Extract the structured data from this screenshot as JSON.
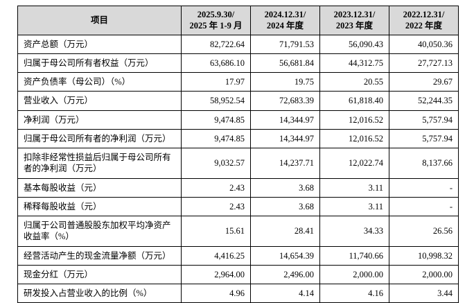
{
  "colors": {
    "header_bg": "#d9d9d9",
    "border": "#000000",
    "text": "#000000"
  },
  "table": {
    "headers": [
      {
        "line1": "项目",
        "line2": ""
      },
      {
        "line1": "2025.9.30/",
        "line2": "2025 年 1-9 月"
      },
      {
        "line1": "2024.12.31/",
        "line2": "2024 年度"
      },
      {
        "line1": "2023.12.31/",
        "line2": "2023 年度"
      },
      {
        "line1": "2022.12.31/",
        "line2": "2022 年度"
      }
    ],
    "rows": [
      {
        "label": "资产总额（万元）",
        "values": [
          "82,722.64",
          "71,791.53",
          "56,090.43",
          "40,050.36"
        ]
      },
      {
        "label": "归属于母公司所有者权益（万元）",
        "values": [
          "63,686.10",
          "56,681.84",
          "44,312.75",
          "27,727.13"
        ]
      },
      {
        "label": "资产负债率（母公司）（%）",
        "values": [
          "17.97",
          "19.75",
          "20.55",
          "29.67"
        ]
      },
      {
        "label": "营业收入（万元）",
        "values": [
          "58,952.54",
          "72,683.39",
          "61,818.40",
          "52,244.35"
        ]
      },
      {
        "label": "净利润（万元）",
        "values": [
          "9,474.85",
          "14,344.97",
          "12,016.52",
          "5,757.94"
        ]
      },
      {
        "label": "归属于母公司所有者的净利润（万元）",
        "values": [
          "9,474.85",
          "14,344.97",
          "12,016.52",
          "5,757.94"
        ]
      },
      {
        "label": "扣除非经常性损益后归属于母公司所有者的净利润（万元）",
        "values": [
          "9,032.57",
          "14,237.71",
          "12,022.74",
          "8,137.66"
        ]
      },
      {
        "label": "基本每股收益（元）",
        "values": [
          "2.43",
          "3.68",
          "3.11",
          "-"
        ]
      },
      {
        "label": "稀释每股收益（元）",
        "values": [
          "2.43",
          "3.68",
          "3.11",
          "-"
        ]
      },
      {
        "label": "归属于公司普通股股东加权平均净资产收益率（%）",
        "values": [
          "15.61",
          "28.41",
          "34.33",
          "26.56"
        ]
      },
      {
        "label": "经营活动产生的现金流量净额（万元）",
        "values": [
          "4,416.25",
          "14,654.39",
          "11,740.66",
          "10,998.32"
        ]
      },
      {
        "label": "现金分红（万元）",
        "values": [
          "2,964.00",
          "2,496.00",
          "2,000.00",
          "2,000.00"
        ]
      },
      {
        "label": "研发投入占营业收入的比例（%）",
        "values": [
          "4.96",
          "4.14",
          "4.16",
          "3.44"
        ]
      }
    ]
  }
}
